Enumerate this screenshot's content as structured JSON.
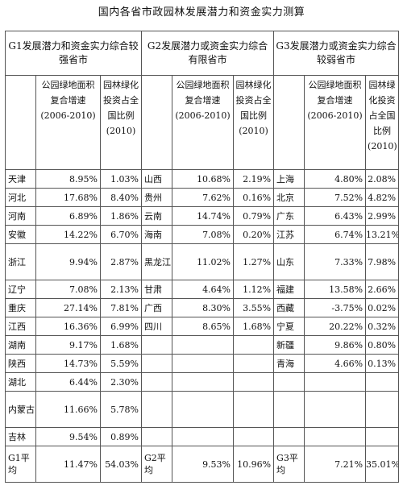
{
  "title": "国内各省市政园林发展潜力和资金实力测算",
  "groups": [
    {
      "header": "G1发展潜力和资金实力综合较强省市"
    },
    {
      "header": "G2发展潜力或资金实力综合有限省市"
    },
    {
      "header": "G3发展潜力或资金实力综合较弱省市"
    }
  ],
  "col_growth": "公园绿地面积复合增速(2006-2010)",
  "col_invest": "园林绿化投资占全国比例(2010)",
  "rows": [
    {
      "g1": [
        "天津",
        "8.95%",
        "1.03%"
      ],
      "g2": [
        "山西",
        "10.68%",
        "2.19%"
      ],
      "g3": [
        "上海",
        "4.80%",
        "2.08%"
      ]
    },
    {
      "g1": [
        "河北",
        "17.68%",
        "8.40%"
      ],
      "g2": [
        "贵州",
        "7.62%",
        "0.16%"
      ],
      "g3": [
        "北京",
        "7.52%",
        "4.82%"
      ]
    },
    {
      "g1": [
        "河南",
        "6.89%",
        "1.86%"
      ],
      "g2": [
        "云南",
        "14.74%",
        "0.79%"
      ],
      "g3": [
        "广东",
        "6.43%",
        "2.99%"
      ]
    },
    {
      "g1": [
        "安徽",
        "14.22%",
        "6.70%"
      ],
      "g2": [
        "海南",
        "7.08%",
        "0.20%"
      ],
      "g3": [
        "江苏",
        "6.74%",
        "13.21%"
      ]
    },
    {
      "g1": [
        "浙江",
        "9.94%",
        "2.87%"
      ],
      "g2": [
        "黑龙江",
        "11.02%",
        "1.27%"
      ],
      "g3": [
        "山东",
        "7.33%",
        "7.98%"
      ]
    },
    {
      "g1": [
        "辽宁",
        "7.08%",
        "2.13%"
      ],
      "g2": [
        "甘肃",
        "4.64%",
        "1.12%"
      ],
      "g3": [
        "福建",
        "13.58%",
        "2.66%"
      ]
    },
    {
      "g1": [
        "重庆",
        "27.14%",
        "7.81%"
      ],
      "g2": [
        "广西",
        "8.30%",
        "3.55%"
      ],
      "g3": [
        "西藏",
        "-3.75%",
        "0.02%"
      ]
    },
    {
      "g1": [
        "江西",
        "16.36%",
        "6.99%"
      ],
      "g2": [
        "四川",
        "8.65%",
        "1.68%"
      ],
      "g3": [
        "宁夏",
        "20.22%",
        "0.32%"
      ]
    },
    {
      "g1": [
        "湖南",
        "9.17%",
        "1.68%"
      ],
      "g2": [
        "",
        "",
        ""
      ],
      "g3": [
        "新疆",
        "9.86%",
        "0.80%"
      ]
    },
    {
      "g1": [
        "陕西",
        "14.73%",
        "5.59%"
      ],
      "g2": [
        "",
        "",
        ""
      ],
      "g3": [
        "青海",
        "4.66%",
        "0.13%"
      ]
    },
    {
      "g1": [
        "湖北",
        "6.44%",
        "2.30%"
      ],
      "g2": [
        "",
        "",
        ""
      ],
      "g3": [
        "",
        "",
        ""
      ]
    },
    {
      "g1": [
        "内蒙古",
        "11.66%",
        "5.78%"
      ],
      "g2": [
        "",
        "",
        ""
      ],
      "g3": [
        "",
        "",
        ""
      ]
    },
    {
      "g1": [
        "吉林",
        "9.54%",
        "0.89%"
      ],
      "g2": [
        "",
        "",
        ""
      ],
      "g3": [
        "",
        "",
        ""
      ]
    },
    {
      "g1": [
        "G1平均",
        "11.47%",
        "54.03%"
      ],
      "g2": [
        "G2平均",
        "9.53%",
        "10.96%"
      ],
      "g3": [
        "G3平均",
        "7.21%",
        "35.01%"
      ]
    }
  ]
}
